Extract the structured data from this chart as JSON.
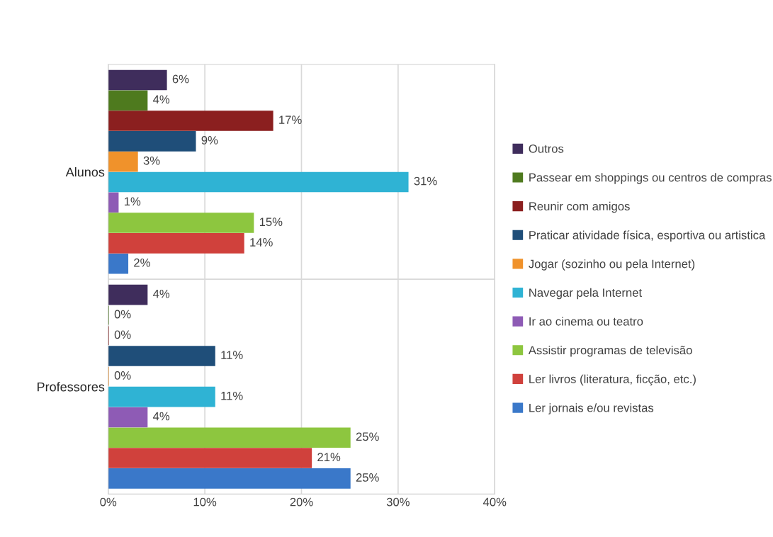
{
  "chart_data": {
    "type": "bar",
    "orientation": "horizontal",
    "categories": [
      "Alunos",
      "Professores"
    ],
    "series": [
      {
        "name": "Ler jornais e/ou revistas",
        "color": "#3a78c9",
        "values": [
          2,
          25
        ],
        "value_labels": [
          "2%",
          "25%"
        ]
      },
      {
        "name": "Ler livros (literatura, ficção, etc.)",
        "color": "#d0413c",
        "values": [
          14,
          21
        ],
        "value_labels": [
          "14%",
          "21%"
        ]
      },
      {
        "name": "Assistir programas de televisão",
        "color": "#8dc63f",
        "values": [
          15,
          25
        ],
        "value_labels": [
          "15%",
          "25%"
        ]
      },
      {
        "name": "Ir ao cinema ou teatro",
        "color": "#8e5bb5",
        "values": [
          1,
          4
        ],
        "value_labels": [
          "1%",
          "4%"
        ]
      },
      {
        "name": "Navegar pela Internet",
        "color": "#2fb3d4",
        "values": [
          31,
          11
        ],
        "value_labels": [
          "31%",
          "11%"
        ]
      },
      {
        "name": "Jogar (sozinho ou pela Internet)",
        "color": "#f0922b",
        "values": [
          3,
          0
        ],
        "value_labels": [
          "3%",
          "0%"
        ]
      },
      {
        "name": "Praticar atividade física, esportiva ou artistica",
        "color": "#1f4e79",
        "values": [
          9,
          11
        ],
        "value_labels": [
          "9%",
          "11%"
        ]
      },
      {
        "name": "Reunir com amigos",
        "color": "#8b1f1f",
        "values": [
          17,
          0
        ],
        "value_labels": [
          "17%",
          "0%"
        ]
      },
      {
        "name": "Passear em shoppings ou centros de compras",
        "color": "#4e7a1e",
        "values": [
          4,
          0
        ],
        "value_labels": [
          "4%",
          "0%"
        ]
      },
      {
        "name": "Outros",
        "color": "#3f2d5c",
        "values": [
          6,
          4
        ],
        "value_labels": [
          "6%",
          "4%"
        ]
      }
    ],
    "xlim": [
      0,
      40
    ],
    "xticks": [
      {
        "value": 0,
        "label": "0%"
      },
      {
        "value": 10,
        "label": "10%"
      },
      {
        "value": 20,
        "label": "20%"
      },
      {
        "value": 30,
        "label": "30%"
      },
      {
        "value": 40,
        "label": "40%"
      }
    ],
    "grid": "x",
    "legend": "right"
  }
}
